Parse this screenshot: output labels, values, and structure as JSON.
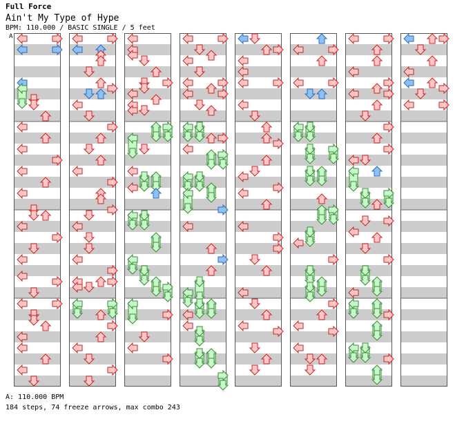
{
  "header": {
    "title": "Full Force",
    "song": "Ain't My Type of Hype",
    "info": "BPM: 110.000 / BASIC SINGLE / 5 feet"
  },
  "bpm_marker": "A",
  "footer": {
    "bpm": "A: 110.000 BPM",
    "stats": "184 steps, 74 freeze arrows, max combo 243"
  },
  "colors": {
    "tap_fill": "#ffc8c8",
    "tap_stroke": "#cc2222",
    "special_fill": "#8ec0f0",
    "special_stroke": "#2a6cc0",
    "freeze_fill": "#c8f8c8",
    "freeze_stroke": "#3a8a3a",
    "stripe": "#cccccc"
  },
  "chart_data": {
    "type": "step-chart",
    "lanes": [
      "left",
      "down",
      "up",
      "right"
    ],
    "notes": [
      [
        [
          0,
          0,
          1
        ],
        [
          0,
          3,
          1
        ],
        [
          2,
          0,
          2
        ],
        [
          2,
          3,
          2
        ],
        [
          8,
          0,
          2
        ],
        [
          9,
          0,
          4
        ],
        [
          11,
          1,
          1
        ],
        [
          12,
          1,
          1
        ],
        [
          14,
          2,
          1
        ],
        [
          16,
          0,
          1
        ],
        [
          18,
          2,
          1
        ],
        [
          20,
          0,
          1
        ],
        [
          22,
          3,
          1
        ],
        [
          24,
          0,
          1
        ],
        [
          26,
          2,
          1
        ],
        [
          28,
          0,
          1
        ],
        [
          31,
          1,
          1
        ],
        [
          32,
          1,
          1
        ],
        [
          32,
          2,
          1
        ],
        [
          34,
          0,
          1
        ],
        [
          36,
          3,
          1
        ],
        [
          38,
          1,
          1
        ],
        [
          40,
          0,
          1
        ],
        [
          43,
          0,
          1
        ],
        [
          44,
          3,
          1
        ],
        [
          46,
          1,
          1
        ],
        [
          48,
          0,
          1
        ],
        [
          48,
          3,
          1
        ],
        [
          50,
          1,
          1
        ],
        [
          51,
          1,
          1
        ],
        [
          52,
          2,
          1
        ],
        [
          54,
          0,
          1
        ],
        [
          56,
          0,
          1
        ],
        [
          58,
          2,
          1
        ],
        [
          60,
          0,
          1
        ],
        [
          62,
          1,
          1
        ]
      ],
      [
        [
          0,
          0,
          1
        ],
        [
          0,
          3,
          1
        ],
        [
          2,
          0,
          2
        ],
        [
          2,
          2,
          2
        ],
        [
          3,
          2,
          1
        ],
        [
          4,
          2,
          1
        ],
        [
          6,
          1,
          1
        ],
        [
          8,
          2,
          1
        ],
        [
          9,
          3,
          1
        ],
        [
          10,
          1,
          2
        ],
        [
          10,
          2,
          2
        ],
        [
          12,
          0,
          1
        ],
        [
          14,
          1,
          1
        ],
        [
          16,
          3,
          1
        ],
        [
          18,
          2,
          1
        ],
        [
          20,
          1,
          1
        ],
        [
          22,
          2,
          1
        ],
        [
          24,
          0,
          1
        ],
        [
          26,
          3,
          1
        ],
        [
          28,
          2,
          1
        ],
        [
          29,
          2,
          1
        ],
        [
          31,
          3,
          1
        ],
        [
          32,
          1,
          1
        ],
        [
          34,
          0,
          1
        ],
        [
          36,
          1,
          1
        ],
        [
          38,
          1,
          1
        ],
        [
          40,
          0,
          1
        ],
        [
          42,
          3,
          1
        ],
        [
          44,
          0,
          1
        ],
        [
          44,
          2,
          1
        ],
        [
          44,
          3,
          1
        ],
        [
          45,
          1,
          1
        ],
        [
          45,
          0,
          1
        ],
        [
          48,
          0,
          3
        ],
        [
          48,
          3,
          3
        ],
        [
          50,
          2,
          1
        ],
        [
          52,
          3,
          1
        ],
        [
          54,
          2,
          1
        ],
        [
          56,
          0,
          1
        ],
        [
          58,
          1,
          1
        ],
        [
          60,
          3,
          1
        ],
        [
          62,
          1,
          1
        ]
      ],
      [
        [
          0,
          0,
          1
        ],
        [
          2,
          0,
          1
        ],
        [
          3,
          0,
          1
        ],
        [
          4,
          1,
          1
        ],
        [
          6,
          2,
          1
        ],
        [
          8,
          1,
          1
        ],
        [
          8,
          3,
          1
        ],
        [
          9,
          1,
          1
        ],
        [
          10,
          0,
          1
        ],
        [
          11,
          2,
          1
        ],
        [
          12,
          0,
          1
        ],
        [
          13,
          0,
          1
        ],
        [
          13,
          1,
          1
        ],
        [
          16,
          2,
          3
        ],
        [
          16,
          3,
          3
        ],
        [
          18,
          0,
          4
        ],
        [
          20,
          1,
          1
        ],
        [
          24,
          0,
          1
        ],
        [
          25,
          1,
          3
        ],
        [
          25,
          2,
          3
        ],
        [
          27,
          0,
          1
        ],
        [
          28,
          2,
          2
        ],
        [
          32,
          0,
          3
        ],
        [
          32,
          1,
          3
        ],
        [
          36,
          2,
          3
        ],
        [
          40,
          0,
          3
        ],
        [
          42,
          1,
          3
        ],
        [
          44,
          2,
          3
        ],
        [
          45,
          3,
          3
        ],
        [
          48,
          0,
          4
        ],
        [
          50,
          3,
          1
        ],
        [
          54,
          1,
          1
        ],
        [
          56,
          0,
          1
        ],
        [
          58,
          3,
          1
        ]
      ],
      [
        [
          0,
          0,
          1
        ],
        [
          0,
          3,
          1
        ],
        [
          2,
          1,
          1
        ],
        [
          3,
          2,
          1
        ],
        [
          4,
          0,
          1
        ],
        [
          6,
          1,
          1
        ],
        [
          8,
          0,
          1
        ],
        [
          8,
          3,
          1
        ],
        [
          9,
          2,
          1
        ],
        [
          10,
          0,
          1
        ],
        [
          10,
          3,
          1
        ],
        [
          12,
          1,
          1
        ],
        [
          13,
          2,
          1
        ],
        [
          16,
          0,
          3
        ],
        [
          16,
          1,
          3
        ],
        [
          18,
          2,
          1
        ],
        [
          18,
          3,
          1
        ],
        [
          20,
          0,
          1
        ],
        [
          21,
          2,
          3
        ],
        [
          21,
          3,
          3
        ],
        [
          25,
          0,
          3
        ],
        [
          25,
          1,
          3
        ],
        [
          27,
          2,
          3
        ],
        [
          28,
          0,
          4
        ],
        [
          31,
          3,
          2
        ],
        [
          34,
          0,
          1
        ],
        [
          38,
          2,
          1
        ],
        [
          40,
          3,
          2
        ],
        [
          42,
          2,
          1
        ],
        [
          44,
          1,
          4
        ],
        [
          46,
          0,
          3
        ],
        [
          48,
          1,
          3
        ],
        [
          48,
          2,
          3
        ],
        [
          50,
          0,
          1
        ],
        [
          52,
          0,
          1
        ],
        [
          53,
          1,
          3
        ],
        [
          57,
          1,
          3
        ],
        [
          57,
          2,
          3
        ],
        [
          61,
          3,
          3
        ]
      ],
      [
        [
          0,
          0,
          2
        ],
        [
          0,
          1,
          1
        ],
        [
          2,
          2,
          1
        ],
        [
          2,
          3,
          1
        ],
        [
          4,
          0,
          1
        ],
        [
          6,
          0,
          1
        ],
        [
          8,
          0,
          1
        ],
        [
          8,
          3,
          1
        ],
        [
          12,
          0,
          1
        ],
        [
          14,
          1,
          1
        ],
        [
          16,
          2,
          1
        ],
        [
          18,
          2,
          1
        ],
        [
          19,
          3,
          1
        ],
        [
          22,
          2,
          1
        ],
        [
          24,
          1,
          1
        ],
        [
          25,
          0,
          1
        ],
        [
          27,
          3,
          1
        ],
        [
          28,
          0,
          1
        ],
        [
          30,
          2,
          1
        ],
        [
          34,
          0,
          1
        ],
        [
          36,
          3,
          1
        ],
        [
          38,
          3,
          1
        ],
        [
          40,
          1,
          1
        ],
        [
          42,
          2,
          1
        ],
        [
          46,
          0,
          1
        ],
        [
          48,
          1,
          1
        ],
        [
          50,
          2,
          1
        ],
        [
          52,
          0,
          1
        ],
        [
          53,
          3,
          1
        ],
        [
          56,
          1,
          1
        ],
        [
          58,
          2,
          1
        ],
        [
          60,
          1,
          1
        ]
      ],
      [
        [
          0,
          2,
          2
        ],
        [
          2,
          0,
          1
        ],
        [
          2,
          3,
          1
        ],
        [
          4,
          2,
          1
        ],
        [
          8,
          0,
          1
        ],
        [
          8,
          3,
          1
        ],
        [
          10,
          1,
          2
        ],
        [
          10,
          2,
          2
        ],
        [
          16,
          0,
          3
        ],
        [
          16,
          1,
          3
        ],
        [
          20,
          1,
          3
        ],
        [
          20,
          3,
          3
        ],
        [
          24,
          1,
          3
        ],
        [
          24,
          2,
          3
        ],
        [
          29,
          2,
          1
        ],
        [
          31,
          2,
          3
        ],
        [
          31,
          3,
          3
        ],
        [
          35,
          1,
          3
        ],
        [
          37,
          0,
          1
        ],
        [
          40,
          3,
          1
        ],
        [
          42,
          1,
          3
        ],
        [
          44,
          2,
          3
        ],
        [
          45,
          1,
          3
        ],
        [
          48,
          3,
          1
        ],
        [
          50,
          2,
          1
        ],
        [
          52,
          0,
          1
        ],
        [
          53,
          3,
          1
        ],
        [
          56,
          0,
          1
        ],
        [
          58,
          1,
          1
        ],
        [
          58,
          2,
          1
        ],
        [
          60,
          1,
          1
        ]
      ],
      [
        [
          0,
          0,
          1
        ],
        [
          0,
          3,
          1
        ],
        [
          2,
          2,
          1
        ],
        [
          4,
          2,
          1
        ],
        [
          6,
          0,
          1
        ],
        [
          8,
          3,
          1
        ],
        [
          9,
          2,
          1
        ],
        [
          10,
          0,
          1
        ],
        [
          10,
          3,
          1
        ],
        [
          12,
          2,
          1
        ],
        [
          14,
          1,
          1
        ],
        [
          16,
          3,
          1
        ],
        [
          18,
          2,
          1
        ],
        [
          20,
          3,
          1
        ],
        [
          22,
          0,
          1
        ],
        [
          22,
          1,
          1
        ],
        [
          24,
          0,
          4
        ],
        [
          24,
          2,
          2
        ],
        [
          28,
          1,
          3
        ],
        [
          28,
          3,
          3
        ],
        [
          30,
          2,
          1
        ],
        [
          33,
          1,
          1
        ],
        [
          33,
          3,
          1
        ],
        [
          35,
          0,
          1
        ],
        [
          36,
          2,
          1
        ],
        [
          38,
          1,
          1
        ],
        [
          40,
          3,
          1
        ],
        [
          42,
          1,
          3
        ],
        [
          44,
          2,
          3
        ],
        [
          46,
          0,
          1
        ],
        [
          48,
          0,
          3
        ],
        [
          48,
          2,
          3
        ],
        [
          50,
          3,
          1
        ],
        [
          52,
          2,
          3
        ],
        [
          56,
          0,
          3
        ],
        [
          56,
          1,
          3
        ],
        [
          58,
          3,
          1
        ],
        [
          60,
          2,
          3
        ]
      ],
      [
        [
          0,
          0,
          2
        ],
        [
          0,
          2,
          1
        ],
        [
          0,
          3,
          1
        ],
        [
          2,
          1,
          1
        ],
        [
          4,
          2,
          1
        ],
        [
          6,
          0,
          1
        ],
        [
          8,
          0,
          2
        ],
        [
          8,
          2,
          1
        ],
        [
          9,
          3,
          1
        ],
        [
          10,
          1,
          1
        ],
        [
          12,
          0,
          1
        ],
        [
          12,
          3,
          1
        ]
      ]
    ]
  }
}
